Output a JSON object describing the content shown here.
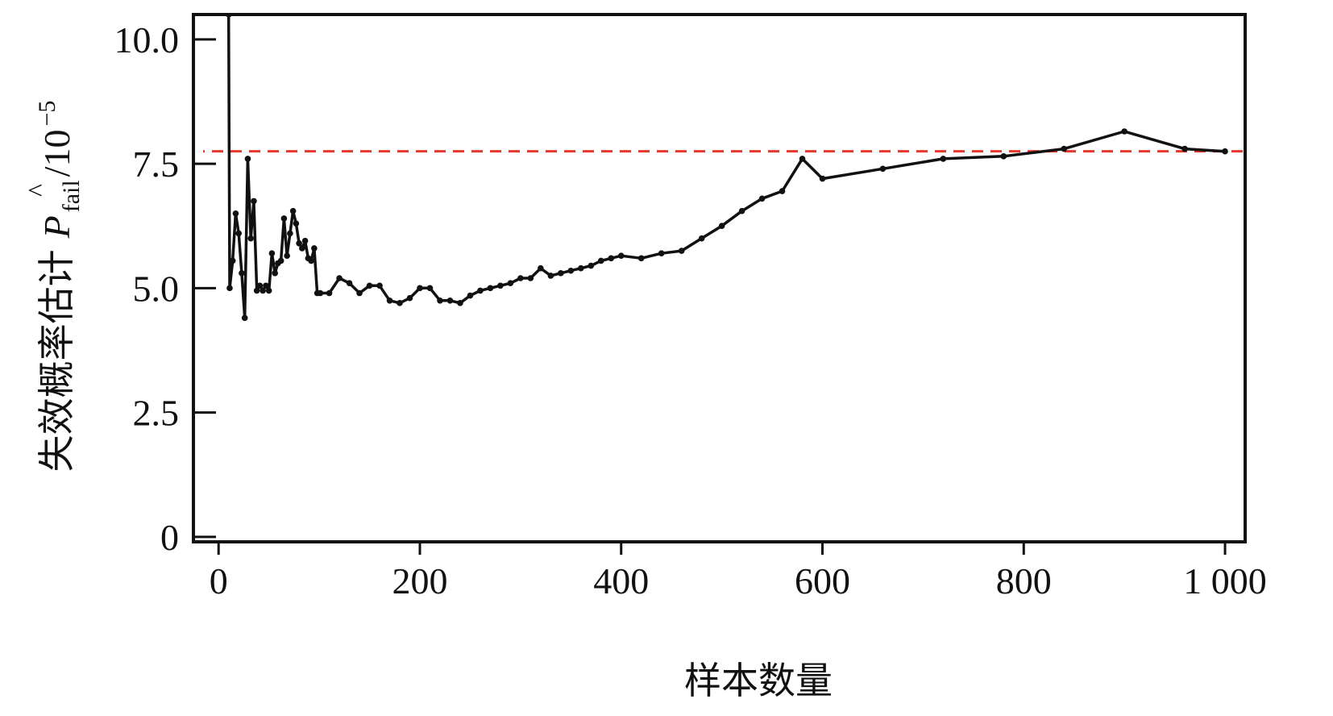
{
  "chart_data": {
    "type": "line",
    "title": "",
    "xlabel": "样本数量",
    "ylabel": {
      "prefix": "失效概率估计",
      "symbol": "P",
      "hat": "^",
      "subscript": "fail",
      "unit": "/10",
      "exponent": "−5"
    },
    "xlim": [
      -25,
      1020
    ],
    "ylim": [
      -0.1,
      10.5
    ],
    "x_ticks": [
      0,
      200,
      400,
      600,
      800,
      1000
    ],
    "x_tick_labels": [
      "0",
      "200",
      "400",
      "600",
      "800",
      "1 000"
    ],
    "y_ticks": [
      0,
      2.5,
      5.0,
      7.5,
      10.0
    ],
    "y_tick_labels": [
      "0",
      "2.5",
      "5.0",
      "7.5",
      "10.0"
    ],
    "grid": false,
    "reference_line": {
      "y": 7.75,
      "color": "#e8372c",
      "style": "dashed"
    },
    "series": [
      {
        "color": "#111111",
        "marker": "dot",
        "x": [
          10,
          11,
          14,
          17,
          20,
          23,
          26,
          29,
          32,
          35,
          38,
          41,
          44,
          47,
          50,
          53,
          56,
          59,
          62,
          65,
          68,
          71,
          74,
          77,
          80,
          83,
          86,
          89,
          92,
          95,
          98,
          101,
          110,
          120,
          130,
          140,
          150,
          160,
          170,
          180,
          190,
          200,
          210,
          220,
          230,
          240,
          250,
          260,
          270,
          280,
          290,
          300,
          310,
          320,
          330,
          340,
          350,
          360,
          370,
          380,
          390,
          400,
          420,
          440,
          460,
          480,
          500,
          520,
          540,
          560,
          580,
          600,
          660,
          720,
          780,
          840,
          900,
          960,
          1000
        ],
        "y": [
          10.5,
          5.0,
          5.55,
          6.5,
          6.1,
          5.3,
          4.4,
          7.6,
          6.0,
          6.75,
          4.95,
          5.05,
          4.95,
          5.05,
          4.95,
          5.7,
          5.3,
          5.5,
          5.55,
          6.4,
          5.65,
          6.1,
          6.55,
          6.3,
          5.9,
          5.8,
          5.95,
          5.6,
          5.55,
          5.8,
          4.9,
          4.9,
          4.9,
          5.2,
          5.1,
          4.9,
          5.05,
          5.05,
          4.75,
          4.7,
          4.8,
          5.0,
          5.0,
          4.75,
          4.75,
          4.7,
          4.85,
          4.95,
          5.0,
          5.05,
          5.1,
          5.2,
          5.2,
          5.4,
          5.25,
          5.3,
          5.35,
          5.4,
          5.45,
          5.55,
          5.6,
          5.65,
          5.6,
          5.7,
          5.75,
          6.0,
          6.25,
          6.55,
          6.8,
          6.95,
          7.6,
          7.2,
          7.4,
          7.6,
          7.65,
          7.8,
          8.15,
          7.8,
          7.75
        ]
      }
    ]
  }
}
